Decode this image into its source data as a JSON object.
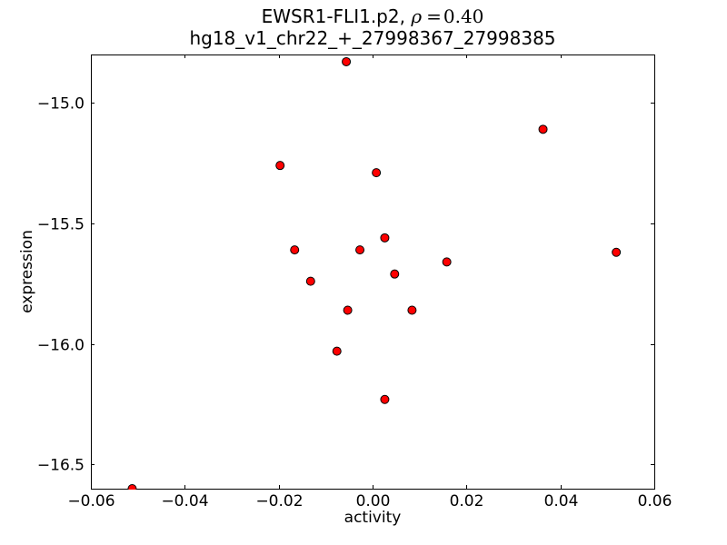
{
  "figure": {
    "background": "#ffffff"
  },
  "chart_data": {
    "type": "scatter",
    "title_prefix": "EWSR1-FLI1.p2, ",
    "title_rho_symbol": "ρ",
    "title_equals": "=",
    "title_rho_value": "0.40",
    "subtitle": "hg18_v1_chr22_+_27998367_27998385",
    "xlabel": "activity",
    "ylabel": "expression",
    "xlim": [
      -0.06,
      0.06
    ],
    "ylim": [
      -16.6,
      -14.8
    ],
    "xticks": [
      -0.06,
      -0.04,
      -0.02,
      0,
      0.02,
      0.04,
      0.06
    ],
    "xtick_labels": [
      "−0.06",
      "−0.04",
      "−0.02",
      "0.00",
      "0.02",
      "0.04",
      "0.06"
    ],
    "yticks": [
      -15.0,
      -15.5,
      -16.0,
      -16.5
    ],
    "ytick_labels": [
      "−15.0",
      "−15.5",
      "−16.0",
      "−16.5"
    ],
    "grid": false,
    "axis_color": "#000000",
    "marker": {
      "shape": "circle",
      "fill": "#ff0000",
      "edge": "#000000",
      "radius": 4.5
    },
    "points": [
      [
        -0.0056,
        -14.83
      ],
      [
        0.0363,
        -15.11
      ],
      [
        -0.0197,
        -15.26
      ],
      [
        0.0008,
        -15.29
      ],
      [
        0.0026,
        -15.56
      ],
      [
        -0.0166,
        -15.61
      ],
      [
        -0.0027,
        -15.61
      ],
      [
        0.0519,
        -15.62
      ],
      [
        0.0158,
        -15.66
      ],
      [
        0.0047,
        -15.71
      ],
      [
        -0.0132,
        -15.74
      ],
      [
        -0.0053,
        -15.86
      ],
      [
        0.0084,
        -15.86
      ],
      [
        -0.0076,
        -16.03
      ],
      [
        0.0026,
        -16.23
      ],
      [
        -0.0512,
        -16.6
      ]
    ]
  }
}
